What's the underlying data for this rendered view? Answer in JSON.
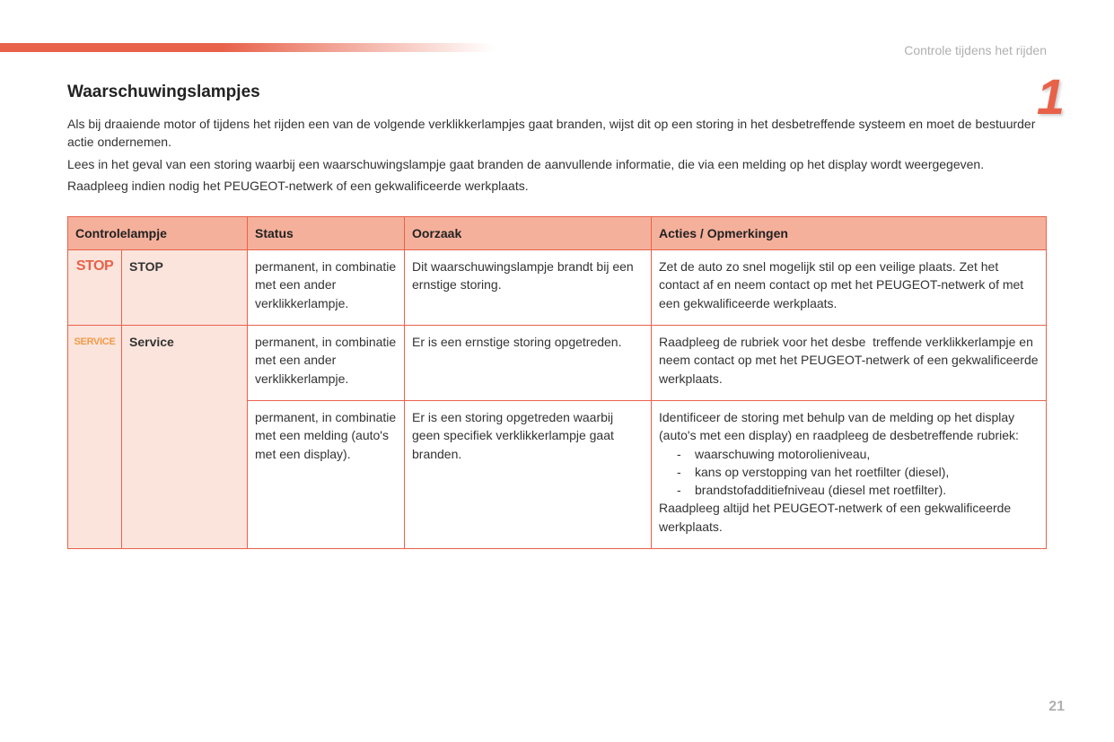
{
  "section_label": "Controle tijdens het rijden",
  "chapter_number": "1",
  "page_number": "21",
  "heading": "Waarschuwingslampjes",
  "intro_paragraphs": [
    "Als bij draaiende motor of tijdens het rijden een van de volgende verklikkerlampjes gaat branden, wijst dit op een storing in het desbetreffende systeem en moet de bestuurder actie ondernemen.",
    "Lees in het geval van een storing waarbij een waarschuwingslampje gaat branden de aanvullende informatie, die via een melding op het display wordt weergegeven.",
    "Raadpleeg indien nodig het PEUGEOT-netwerk of een gekwalificeerde werkplaats."
  ],
  "table": {
    "headers": {
      "col1": "Controlelampje",
      "col2": "Status",
      "col3": "Oorzaak",
      "col4": "Acties / Opmerkingen"
    },
    "rows": [
      {
        "icon_text": "STOP",
        "icon_style": "stop",
        "label": "STOP",
        "status": "permanent, in combinatie met een ander verklikkerlampje.",
        "cause": "Dit waarschuwingslampje brandt bij een ernstige storing.",
        "action": "Zet de auto zo snel mogelijk stil op een veilige plaats. Zet het contact af en neem contact op met het PEUGEOT-netwerk of met een gekwalificeerde werkplaats."
      },
      {
        "icon_text": "SERVICE",
        "icon_style": "service",
        "label": "Service",
        "row_span_icon": 2,
        "variants": [
          {
            "status": "permanent, in combinatie met een ander verklikkerlampje.",
            "cause": "Er is een ernstige storing opgetreden.",
            "action": "Raadpleeg de rubriek voor het desbe  treffende verklikkerlampje en neem contact op met het PEUGEOT-netwerk of een gekwalificeerde werkplaats."
          },
          {
            "status": "permanent, in combinatie met een melding (auto's met een display).",
            "cause": "Er is een storing opgetreden waarbij geen specifiek verklikkerlampje gaat branden.",
            "action_pre": "Identificeer de storing met behulp van de melding op het display (auto's met een display) en raadpleeg de desbetreffende rubriek:",
            "action_list": [
              "waarschuwing motorolieniveau,",
              "kans op verstopping van het roetfilter (diesel),",
              "brandstofadditiefniveau (diesel met roetfilter)."
            ],
            "action_post": "Raadpleeg altijd het PEUGEOT-netwerk of een gekwalificeerde werkplaats."
          }
        ]
      }
    ]
  },
  "colors": {
    "accent": "#e8624a",
    "header_bg": "#f5b09b",
    "cell_tint": "#fbe4dc",
    "grey_text": "#b0b0b0",
    "service_orange": "#f29b4a"
  }
}
